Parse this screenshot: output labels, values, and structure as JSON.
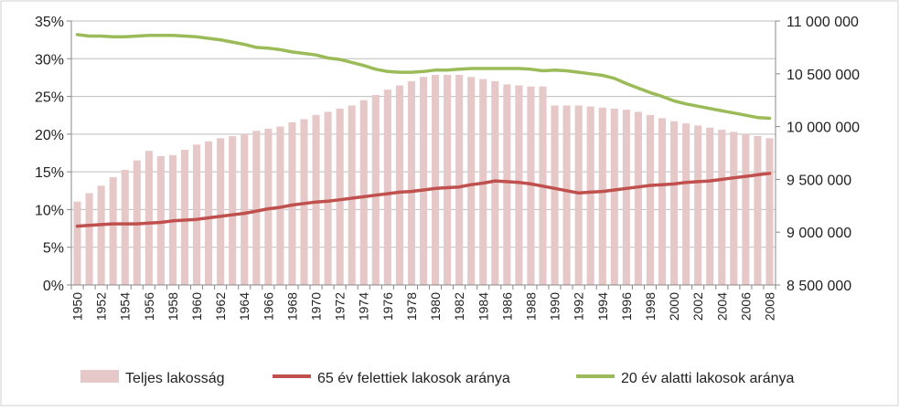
{
  "chart_data": {
    "type": "bar",
    "x": [
      1950,
      1951,
      1952,
      1953,
      1954,
      1955,
      1956,
      1957,
      1958,
      1959,
      1960,
      1961,
      1962,
      1963,
      1964,
      1965,
      1966,
      1967,
      1968,
      1969,
      1970,
      1971,
      1972,
      1973,
      1974,
      1975,
      1976,
      1977,
      1978,
      1979,
      1980,
      1981,
      1982,
      1983,
      1984,
      1985,
      1986,
      1987,
      1988,
      1989,
      1990,
      1991,
      1992,
      1993,
      1994,
      1995,
      1996,
      1997,
      1998,
      1999,
      2000,
      2001,
      2002,
      2003,
      2004,
      2005,
      2006,
      2007,
      2008
    ],
    "x_tick_labels": [
      "1950",
      "1952",
      "1954",
      "1956",
      "1958",
      "1960",
      "1962",
      "1964",
      "1966",
      "1968",
      "1970",
      "1972",
      "1974",
      "1976",
      "1978",
      "1980",
      "1982",
      "1984",
      "1986",
      "1988",
      "1990",
      "1992",
      "1994",
      "1996",
      "1998",
      "2000",
      "2002",
      "2004",
      "2006",
      "2008"
    ],
    "left_axis": {
      "ylim": [
        0,
        0.35
      ],
      "tick_labels": [
        "0%",
        "5%",
        "10%",
        "15%",
        "20%",
        "25%",
        "30%",
        "35%"
      ]
    },
    "right_axis": {
      "ylim": [
        8500000,
        11000000
      ],
      "tick_labels": [
        "8 500 000",
        "9 000 000",
        "9 500 000",
        "10 000 000",
        "10 500 000",
        "11 000 000"
      ]
    },
    "series": [
      {
        "name": "Teljes lakosság",
        "kind": "bar",
        "axis": "right",
        "color": "#e6c8c8",
        "values": [
          9290000,
          9370000,
          9440000,
          9520000,
          9590000,
          9680000,
          9770000,
          9720000,
          9730000,
          9780000,
          9830000,
          9860000,
          9890000,
          9910000,
          9930000,
          9960000,
          9980000,
          10000000,
          10040000,
          10070000,
          10110000,
          10140000,
          10170000,
          10200000,
          10250000,
          10300000,
          10350000,
          10390000,
          10430000,
          10470000,
          10490000,
          10490000,
          10490000,
          10470000,
          10450000,
          10430000,
          10400000,
          10390000,
          10380000,
          10380000,
          10200000,
          10200000,
          10200000,
          10190000,
          10180000,
          10170000,
          10160000,
          10140000,
          10110000,
          10080000,
          10050000,
          10030000,
          10010000,
          9990000,
          9970000,
          9950000,
          9930000,
          9910000,
          9890000
        ]
      },
      {
        "name": "65 év felettiek lakosok aránya",
        "kind": "line",
        "axis": "left",
        "color": "#c0504d",
        "values": [
          0.078,
          0.079,
          0.08,
          0.081,
          0.081,
          0.081,
          0.082,
          0.083,
          0.085,
          0.086,
          0.087,
          0.089,
          0.091,
          0.093,
          0.095,
          0.098,
          0.101,
          0.103,
          0.106,
          0.108,
          0.11,
          0.111,
          0.113,
          0.115,
          0.117,
          0.119,
          0.121,
          0.123,
          0.124,
          0.126,
          0.128,
          0.129,
          0.13,
          0.133,
          0.135,
          0.138,
          0.137,
          0.136,
          0.134,
          0.131,
          0.128,
          0.125,
          0.122,
          0.123,
          0.124,
          0.126,
          0.128,
          0.13,
          0.132,
          0.133,
          0.134,
          0.136,
          0.137,
          0.138,
          0.14,
          0.142,
          0.144,
          0.146,
          0.148
        ]
      },
      {
        "name": "20 év alatti lakosok aránya",
        "kind": "line",
        "axis": "left",
        "color": "#9bbb59",
        "values": [
          0.332,
          0.33,
          0.33,
          0.329,
          0.329,
          0.33,
          0.331,
          0.331,
          0.331,
          0.33,
          0.329,
          0.327,
          0.325,
          0.322,
          0.319,
          0.315,
          0.314,
          0.312,
          0.309,
          0.307,
          0.305,
          0.301,
          0.299,
          0.295,
          0.291,
          0.286,
          0.283,
          0.282,
          0.282,
          0.283,
          0.285,
          0.285,
          0.286,
          0.287,
          0.287,
          0.287,
          0.287,
          0.287,
          0.286,
          0.284,
          0.285,
          0.284,
          0.282,
          0.28,
          0.278,
          0.274,
          0.267,
          0.261,
          0.255,
          0.25,
          0.244,
          0.24,
          0.237,
          0.234,
          0.231,
          0.228,
          0.225,
          0.222,
          0.221
        ]
      }
    ],
    "grid": true,
    "legend_position": "bottom",
    "title": "",
    "xlabel": "",
    "ylabel": ""
  }
}
